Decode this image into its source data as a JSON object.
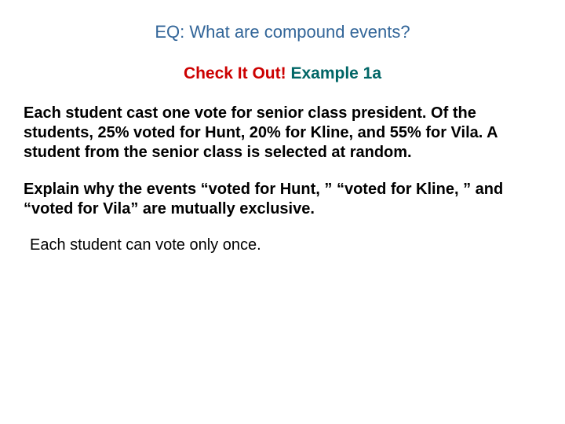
{
  "colors": {
    "eq": "#336699",
    "check_it_out": "#cc0000",
    "example_label": "#006666",
    "body_text": "#000000",
    "background": "#ffffff"
  },
  "fontSizes": {
    "eq": 22,
    "subtitle": 21,
    "body": 20,
    "answer": 20
  },
  "heading": {
    "text": "EQ:  What are compound events?"
  },
  "subtitle": {
    "check": "Check It Out!",
    "example": "Example 1a"
  },
  "paragraphs": {
    "p1": "Each student cast one vote for senior class president. Of the students, 25% voted for Hunt, 20% for Kline, and 55% for Vila. A student from the senior class is selected at random.",
    "p2": "Explain why the events “voted for Hunt, ” “voted for Kline, ” and “voted for Vila” are mutually exclusive."
  },
  "answer": "Each student can vote only once."
}
